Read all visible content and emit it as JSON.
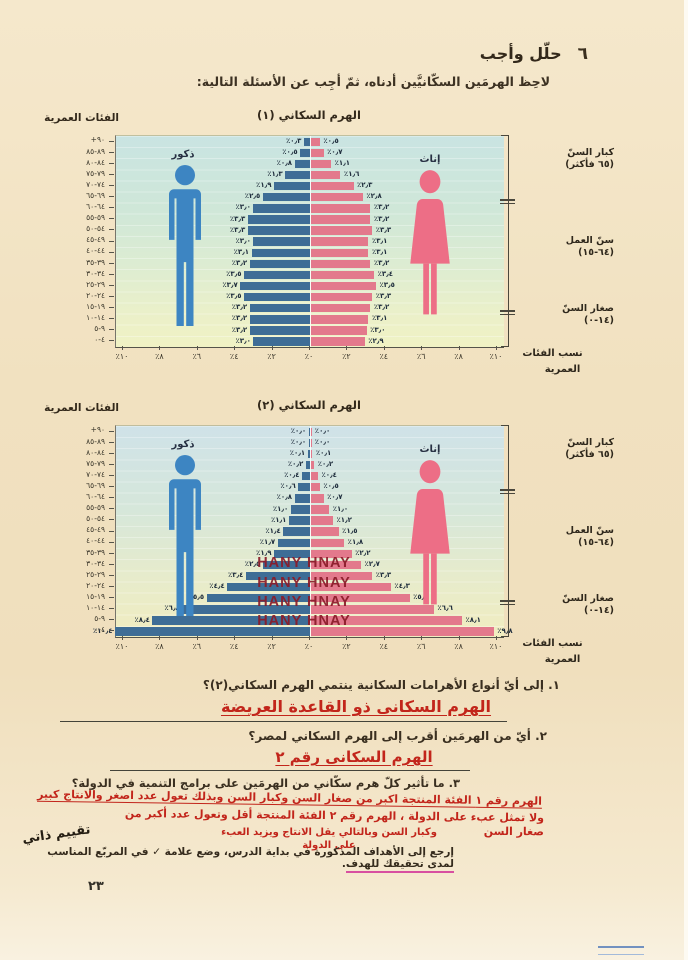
{
  "header": {
    "number": "٦",
    "title": "حلّل وأجب",
    "instruction": "لاحِظ الهرمَين السكّانيَّين أدناه، ثمّ أجِب عن الأسئلة التالية:"
  },
  "colors": {
    "male_bar": "#3e6d96",
    "female_bar": "#e3798c",
    "male_icon": "#3d85c2",
    "female_icon": "#ed6e86",
    "answer_red": "#c2251b",
    "watermark_red": "#8a1b28",
    "underline_pink": "#d84fa0"
  },
  "chart_data": [
    {
      "type": "bar",
      "variant": "population-pyramid",
      "title": "الهرم السكاني (١)",
      "age_axis_title": "الفئات العمرية",
      "categories": [
        "+٩٠",
        "٨٩-٨٥",
        "٨٤-٨٠",
        "٧٩-٧٥",
        "٧٤-٧٠",
        "٦٩-٦٥",
        "٦٤-٦٠",
        "٥٩-٥٥",
        "٥٤-٥٠",
        "٤٩-٤٥",
        "٤٤-٤٠",
        "٣٩-٣٥",
        "٣٤-٣٠",
        "٢٩-٢٥",
        "٢٤-٢٠",
        "١٩-١٥",
        "١٤-١٠",
        "٩-٥",
        "٤-٠"
      ],
      "series": [
        {
          "name": "ذكور",
          "side": "left",
          "values": [
            0.3,
            0.5,
            0.8,
            1.3,
            1.9,
            2.5,
            3.0,
            3.3,
            3.3,
            3.0,
            3.1,
            3.2,
            3.5,
            3.7,
            3.5,
            3.2,
            3.2,
            3.2,
            3.0
          ]
        },
        {
          "name": "إناث",
          "side": "right",
          "values": [
            0.5,
            0.7,
            1.1,
            1.6,
            2.3,
            2.8,
            3.2,
            3.2,
            3.3,
            3.1,
            3.1,
            3.2,
            3.4,
            3.5,
            3.3,
            3.2,
            3.1,
            3.0,
            2.9
          ]
        }
      ],
      "xlim_each_side": [
        0,
        10
      ],
      "x_ticks": [
        "٪١٠",
        "٪٨",
        "٪٦",
        "٪٤",
        "٪٢",
        "٪٠",
        "٪٢",
        "٪٤",
        "٪٦",
        "٪٨",
        "٪١٠"
      ],
      "age_groups_right": [
        {
          "label": "كبار السنّ",
          "range": "(٦٥ فأكثر)",
          "row_span": 6
        },
        {
          "label": "سنّ العمل",
          "range": "(٦٤-١٥)",
          "row_span": 10
        },
        {
          "label": "صغار السنّ",
          "range": "(١٤-٠)",
          "row_span": 3
        }
      ],
      "x_axis_title_lines": [
        "نسب الفئات",
        "العمرية"
      ]
    },
    {
      "type": "bar",
      "variant": "population-pyramid",
      "title": "الهرم السكاني (٢)",
      "age_axis_title": "الفئات العمرية",
      "categories": [
        "+٩٠",
        "٨٩-٨٥",
        "٨٤-٨٠",
        "٧٩-٧٥",
        "٧٤-٧٠",
        "٦٩-٦٥",
        "٦٤-٦٠",
        "٥٩-٥٥",
        "٥٤-٥٠",
        "٤٩-٤٥",
        "٤٤-٤٠",
        "٣٩-٣٥",
        "٣٤-٣٠",
        "٢٩-٢٥",
        "٢٤-٢٠",
        "١٩-١٥",
        "١٤-١٠",
        "٩-٥",
        "٤-٠"
      ],
      "series": [
        {
          "name": "ذكور",
          "side": "left",
          "values": [
            0.0,
            0.0,
            0.1,
            0.2,
            0.4,
            0.6,
            0.8,
            1.0,
            1.1,
            1.4,
            1.7,
            1.9,
            2.5,
            3.4,
            4.4,
            5.5,
            6.8,
            8.4,
            10.4
          ]
        },
        {
          "name": "إناث",
          "side": "right",
          "values": [
            0.0,
            0.0,
            0.1,
            0.2,
            0.4,
            0.5,
            0.7,
            1.0,
            1.2,
            1.5,
            1.8,
            2.2,
            2.7,
            3.3,
            4.3,
            5.3,
            6.6,
            8.1,
            9.8
          ]
        }
      ],
      "xlim_each_side": [
        0,
        10
      ],
      "x_ticks": [
        "٪١٠",
        "٪٨",
        "٪٦",
        "٪٤",
        "٪٢",
        "٪٠",
        "٪٢",
        "٪٤",
        "٪٦",
        "٪٨",
        "٪١٠"
      ],
      "age_groups_right": [
        {
          "label": "كبار السنّ",
          "range": "(٦٥ فأكثر)",
          "row_span": 6
        },
        {
          "label": "سنّ العمل",
          "range": "(٦٤-١٥)",
          "row_span": 10
        },
        {
          "label": "صغار السنّ",
          "range": "(١٤-٠)",
          "row_span": 3
        }
      ],
      "x_axis_title_lines": [
        "نسب الفئات",
        "العمرية"
      ],
      "watermark": {
        "text": "HANY HNAY",
        "count": 4
      }
    }
  ],
  "questions": [
    {
      "text": "١. إلى أيّ أنواع الأهرامات السكانية ينتمي الهرم السكاني(٢)؟",
      "answer": "الهرم السكانى ذو القاعدة العريضة"
    },
    {
      "text": "٢. أيّ من الهرمَين أقرب إلى الهرم السكاني لمصر؟",
      "answer": "الهرم السكانى رقم ٢"
    },
    {
      "text": "٣. ما تأثير كلّ هرم سكّاني من الهرمَين على برامج التنمية في الدولة؟",
      "answer_lines": [
        "الهرم رقم ١ الفئة المنتجة اكبر من صغار السن وكبار السن وبذلك تعول عدد اصغر والانتاج كبير",
        "ولا تمثل عبء على الدولة ، الهرم رقم ٢ الفئة المنتجة أقل وتعول عدد أكبر من صغار السن",
        "وكبار السن وبالتالي يقل الانتاج ويزيد العبء على الدولة"
      ]
    }
  ],
  "footer": {
    "self_eval_label": "تقييم ذاتي",
    "closing_pre": "إرجع إلى الأهداف المذكورة في بداية الدرس، وضع علامة ✓ في المربّع المناسب ",
    "closing_underlined": "لمدى تحقيقك للهدف",
    "closing_post": ".",
    "page_number": "٢٣"
  }
}
